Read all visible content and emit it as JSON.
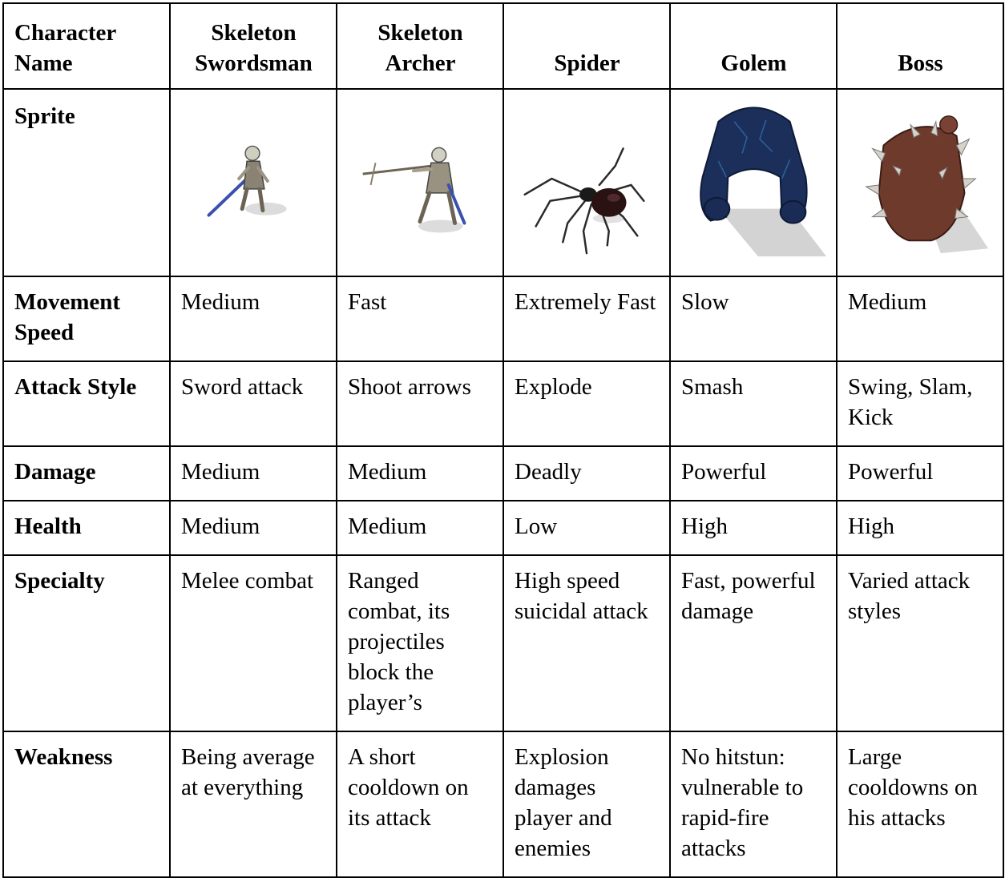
{
  "header": {
    "row_label": "Character Name",
    "columns": [
      "Skeleton Swordsman",
      "Skeleton Archer",
      "Spider",
      "Golem",
      "Boss"
    ]
  },
  "sprite_row": {
    "label": "Sprite",
    "sprites": [
      "skeleton-swordsman-sprite",
      "skeleton-archer-sprite",
      "spider-sprite",
      "golem-sprite",
      "boss-sprite"
    ]
  },
  "rows": [
    {
      "label": "Movement Speed",
      "values": [
        "Medium",
        "Fast",
        "Extremely Fast",
        "Slow",
        "Medium"
      ]
    },
    {
      "label": "Attack Style",
      "values": [
        "Sword attack",
        "Shoot arrows",
        "Explode",
        "Smash",
        "Swing, Slam, Kick"
      ]
    },
    {
      "label": "Damage",
      "values": [
        "Medium",
        "Medium",
        "Deadly",
        "Powerful",
        "Powerful"
      ]
    },
    {
      "label": "Health",
      "values": [
        "Medium",
        "Medium",
        "Low",
        "High",
        "High"
      ]
    },
    {
      "label": "Specialty",
      "values": [
        "Melee combat",
        "Ranged combat, its projectiles block the player’s",
        "High speed suicidal attack",
        "Fast, powerful damage",
        "Varied attack styles"
      ]
    },
    {
      "label": "Weakness",
      "values": [
        "Being average at everything",
        "A short cooldown on its attack",
        "Explosion damages player and enemies",
        "No hitstun: vulnerable to rapid-fire attacks",
        "Large cooldowns on his attacks"
      ]
    }
  ],
  "colors": {
    "border": "#000000",
    "background": "#ffffff",
    "text": "#000000"
  }
}
